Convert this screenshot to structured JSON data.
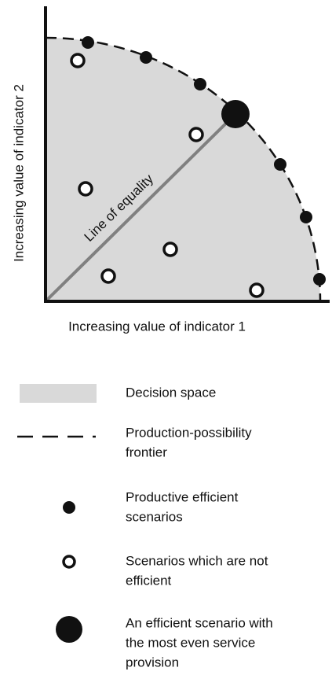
{
  "diagram": {
    "y_axis_label": "Increasing value of indicator 2",
    "x_axis_label": "Increasing value of indicator 1",
    "line_label": "Line of equality",
    "legend": [
      {
        "lines": [
          "Decision space"
        ]
      },
      {
        "lines": [
          "Production-possibility",
          "frontier"
        ]
      },
      {
        "lines": [
          "Productive efficient",
          "scenarios"
        ]
      },
      {
        "lines": [
          "Scenarios which are not",
          "efficient"
        ]
      },
      {
        "lines": [
          "An efficient scenario with",
          "the most even service",
          "provision"
        ]
      }
    ]
  }
}
